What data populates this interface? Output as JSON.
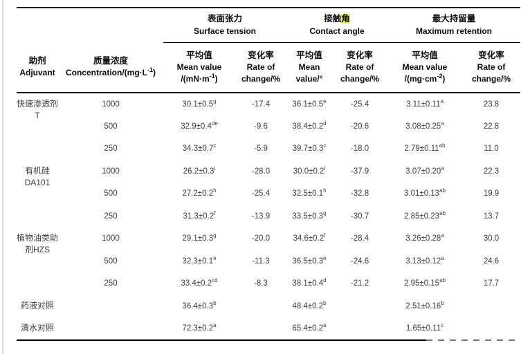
{
  "colors": {
    "highlight": "#eeee4a",
    "border": "#000000",
    "text_data": "#3b3b3b",
    "text_header": "#0a0a0a",
    "edge_line": "#d9d9d9"
  },
  "table": {
    "header": {
      "adjuvant": {
        "zh": "助剂",
        "en": "Adjuvant"
      },
      "concentration": {
        "zh": "质量浓度",
        "en_pre": "Concentration/(mg·L",
        "en_sup": "-1",
        "en_post": ")"
      },
      "groups": [
        {
          "zh": "表面张力",
          "en": "Surface tension"
        },
        {
          "zh_prefix": "接触",
          "zh_highlight": "角",
          "en": "Contact angle"
        },
        {
          "zh": "最大持留量",
          "en": "Maximum retention"
        }
      ],
      "subheaders": [
        {
          "l1": "平均值",
          "l2": "Mean value",
          "unit_pre": "/(mN·m",
          "unit_sup": "-1",
          "unit_post": ")"
        },
        {
          "l1": "变化率",
          "l2": "Rate of",
          "l3": "change/%"
        },
        {
          "l1": "平均值",
          "l2": "Mean",
          "l3": "value/°"
        },
        {
          "l1": "变化率",
          "l2": "Rate of",
          "l3": "change/%"
        },
        {
          "l1": "平均值",
          "l2": "Mean value",
          "unit_pre": "/(mg·cm",
          "unit_sup": "-2",
          "unit_post": ")"
        },
        {
          "l1": "变化率",
          "l2": "Rate of",
          "l3": "change/%"
        }
      ]
    },
    "groups": [
      {
        "adjuvant_lines": [
          "快速渗透剂",
          "T"
        ],
        "rows": [
          {
            "concentration": "1000",
            "cells": [
              {
                "v": "30.1±0.5",
                "s": "g"
              },
              {
                "v": "-17.4"
              },
              {
                "v": "36.1±0.5",
                "s": "e"
              },
              {
                "v": "-25.4"
              },
              {
                "v": "3.11±0.11",
                "s": "a"
              },
              {
                "v": "23.8"
              }
            ]
          },
          {
            "concentration": "500",
            "cells": [
              {
                "v": "32.9±0.4",
                "s": "de"
              },
              {
                "v": "-9.6"
              },
              {
                "v": "38.4±0.2",
                "s": "d"
              },
              {
                "v": "-20.6"
              },
              {
                "v": "3.08±0.25",
                "s": "a"
              },
              {
                "v": "22.8"
              }
            ]
          },
          {
            "concentration": "250",
            "cells": [
              {
                "v": "34.3±0.7",
                "s": "c"
              },
              {
                "v": "-5.9"
              },
              {
                "v": "39.7±0.3",
                "s": "c"
              },
              {
                "v": "-18.0"
              },
              {
                "v": "2.79±0.11",
                "s": "ab"
              },
              {
                "v": "11.0"
              }
            ]
          }
        ]
      },
      {
        "adjuvant_lines": [
          "有机硅",
          "DA101"
        ],
        "rows": [
          {
            "concentration": "1000",
            "cells": [
              {
                "v": "26.2±0.3",
                "s": "i"
              },
              {
                "v": "-28.0"
              },
              {
                "v": "30.0±0.2",
                "s": "i"
              },
              {
                "v": "-37.9"
              },
              {
                "v": "3.07±0.20",
                "s": "a"
              },
              {
                "v": "22.3"
              }
            ]
          },
          {
            "concentration": "500",
            "cells": [
              {
                "v": "27.2±0.2",
                "s": "h"
              },
              {
                "v": "-25.4"
              },
              {
                "v": "32.5±0.1",
                "s": "h"
              },
              {
                "v": "-32.8"
              },
              {
                "v": "3.01±0.13",
                "s": "ab"
              },
              {
                "v": "19.9"
              }
            ]
          },
          {
            "concentration": "250",
            "cells": [
              {
                "v": "31.3±0.2",
                "s": "f"
              },
              {
                "v": "-13.9"
              },
              {
                "v": "33.5±0.3",
                "s": "g"
              },
              {
                "v": "-30.7"
              },
              {
                "v": "2.85±0.23",
                "s": "ab"
              },
              {
                "v": "13.7"
              }
            ]
          }
        ]
      },
      {
        "adjuvant_lines": [
          "植物油类助",
          "剂HZS"
        ],
        "rows": [
          {
            "concentration": "1000",
            "cells": [
              {
                "v": "29.1±0.3",
                "s": "g"
              },
              {
                "v": "-20.0"
              },
              {
                "v": "34.6±0.2",
                "s": "f"
              },
              {
                "v": "-28.4"
              },
              {
                "v": "3.26±0.28",
                "s": "a"
              },
              {
                "v": "30.0"
              }
            ]
          },
          {
            "concentration": "500",
            "cells": [
              {
                "v": "32.3±0.1",
                "s": "e"
              },
              {
                "v": "-11.3"
              },
              {
                "v": "36.5±0.3",
                "s": "e"
              },
              {
                "v": "-24.6"
              },
              {
                "v": "3.13±0.12",
                "s": "a"
              },
              {
                "v": "24.6"
              }
            ]
          },
          {
            "concentration": "250",
            "cells": [
              {
                "v": "33.4±0.2",
                "s": "cd"
              },
              {
                "v": "-8.3"
              },
              {
                "v": "38.1±0.4",
                "s": "d"
              },
              {
                "v": "-21.2"
              },
              {
                "v": "2.95±0.15",
                "s": "ab"
              },
              {
                "v": "17.7"
              }
            ]
          }
        ]
      },
      {
        "adjuvant_lines": [
          "药液对照"
        ],
        "rows": [
          {
            "concentration": "",
            "cells": [
              {
                "v": "36.4±0.3",
                "s": "b"
              },
              {
                "v": ""
              },
              {
                "v": "48.4±0.2",
                "s": "b"
              },
              {
                "v": ""
              },
              {
                "v": "2.51±0.16",
                "s": "b"
              },
              {
                "v": ""
              }
            ]
          }
        ]
      },
      {
        "adjuvant_lines": [
          "清水对照"
        ],
        "rows": [
          {
            "concentration": "",
            "cells": [
              {
                "v": "72.3±0.2",
                "s": "a"
              },
              {
                "v": ""
              },
              {
                "v": "65.4±0.2",
                "s": "a"
              },
              {
                "v": ""
              },
              {
                "v": "1.65±0.11",
                "s": "c"
              },
              {
                "v": ""
              }
            ]
          }
        ]
      }
    ]
  }
}
